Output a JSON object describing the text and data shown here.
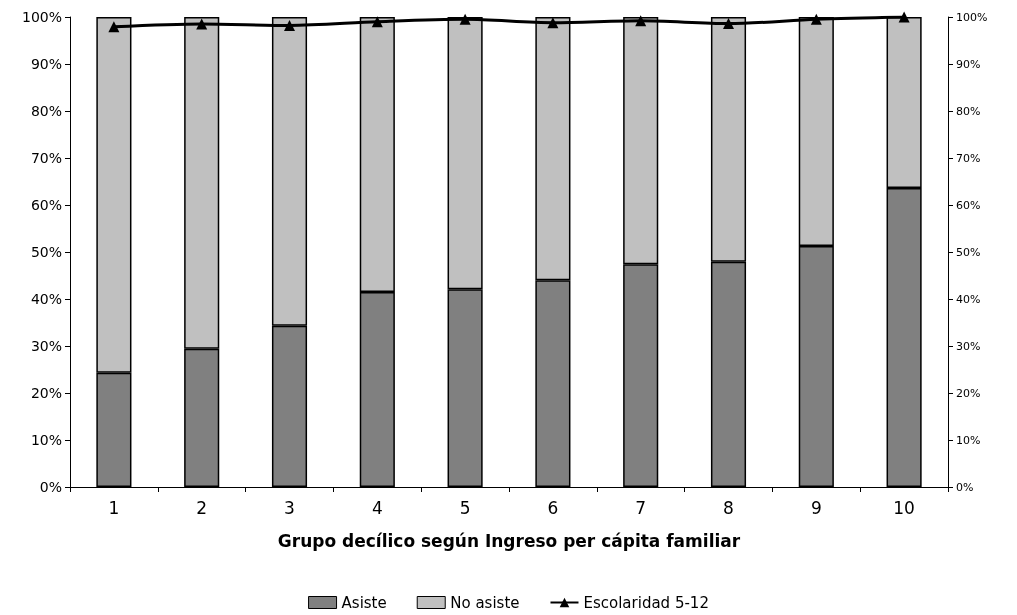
{
  "chart_data": {
    "type": "bar",
    "stacked": true,
    "xlabel": "Grupo decílico según Ingreso per cápita familiar",
    "categories": [
      "1",
      "2",
      "3",
      "4",
      "5",
      "6",
      "7",
      "8",
      "9",
      "10"
    ],
    "series": [
      {
        "name": "Asiste",
        "color": "#808080",
        "values": [
          24.3,
          29.4,
          34.3,
          41.5,
          42.1,
          44.0,
          47.4,
          47.9,
          51.3,
          63.6
        ]
      },
      {
        "name": "No asiste",
        "color": "#c0c0c0",
        "values": [
          75.7,
          70.6,
          65.7,
          58.5,
          57.9,
          56.0,
          52.6,
          52.1,
          48.7,
          36.4
        ]
      },
      {
        "name": "Escolaridad 5-12",
        "type": "line",
        "axis": "y2",
        "color": "#000000",
        "marker": "triangle",
        "values": [
          97.9,
          98.5,
          98.2,
          99.0,
          99.5,
          98.8,
          99.2,
          98.6,
          99.5,
          100
        ]
      }
    ],
    "ylim": [
      0,
      100
    ],
    "yticks": [
      {
        "value": 0,
        "label": "0%"
      },
      {
        "value": 10,
        "label": "10%"
      },
      {
        "value": 20,
        "label": "20%"
      },
      {
        "value": 30,
        "label": "30%"
      },
      {
        "value": 40,
        "label": "40%"
      },
      {
        "value": 50,
        "label": "50%"
      },
      {
        "value": 60,
        "label": "60%"
      },
      {
        "value": 70,
        "label": "70%"
      },
      {
        "value": 80,
        "label": "80%"
      },
      {
        "value": 90,
        "label": "90%"
      },
      {
        "value": 100,
        "label": "100%"
      }
    ],
    "y2lim": [
      0,
      100
    ],
    "y2ticks": [
      {
        "value": 0,
        "label": "0%"
      },
      {
        "value": 10,
        "label": "10%"
      },
      {
        "value": 20,
        "label": "20%"
      },
      {
        "value": 30,
        "label": "30%"
      },
      {
        "value": 40,
        "label": "40%"
      },
      {
        "value": 50,
        "label": "50%"
      },
      {
        "value": 60,
        "label": "60%"
      },
      {
        "value": 70,
        "label": "70%"
      },
      {
        "value": 80,
        "label": "80%"
      },
      {
        "value": 90,
        "label": "90%"
      },
      {
        "value": 100,
        "label": "100%"
      }
    ],
    "grid": false,
    "legend": "bottom"
  }
}
